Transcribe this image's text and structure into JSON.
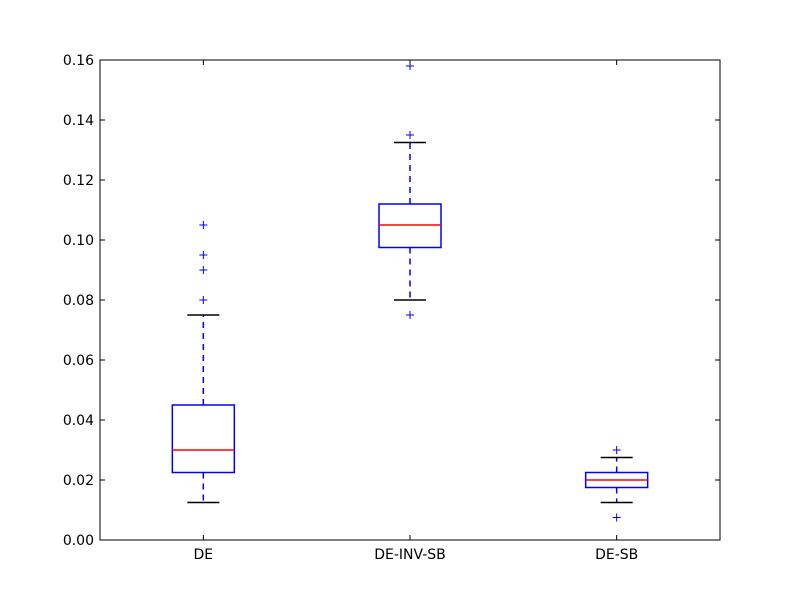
{
  "chart_data": {
    "type": "box",
    "title": "",
    "xlabel": "",
    "ylabel": "",
    "ylim": [
      0,
      0.16
    ],
    "yticks": [
      "0.00",
      "0.02",
      "0.04",
      "0.06",
      "0.08",
      "0.10",
      "0.12",
      "0.14",
      "0.16"
    ],
    "grid": false,
    "categories": [
      "DE",
      "DE-INV-SB",
      "DE-SB"
    ],
    "boxes": [
      {
        "label": "DE",
        "whisker_low": 0.0125,
        "q1": 0.0225,
        "median": 0.03,
        "q3": 0.045,
        "whisker_high": 0.075,
        "outliers": [
          0.08,
          0.09,
          0.095,
          0.105
        ]
      },
      {
        "label": "DE-INV-SB",
        "whisker_low": 0.08,
        "q1": 0.0975,
        "median": 0.105,
        "q3": 0.112,
        "whisker_high": 0.1325,
        "outliers": [
          0.075,
          0.135,
          0.158
        ]
      },
      {
        "label": "DE-SB",
        "whisker_low": 0.0125,
        "q1": 0.0175,
        "median": 0.02,
        "q3": 0.0225,
        "whisker_high": 0.0275,
        "outliers": [
          0.0075,
          0.03
        ]
      }
    ],
    "colors": {
      "box": "#0000ff",
      "median": "#ff0000",
      "whisker_cap": "#000000",
      "outlier": "#0000ff"
    }
  }
}
